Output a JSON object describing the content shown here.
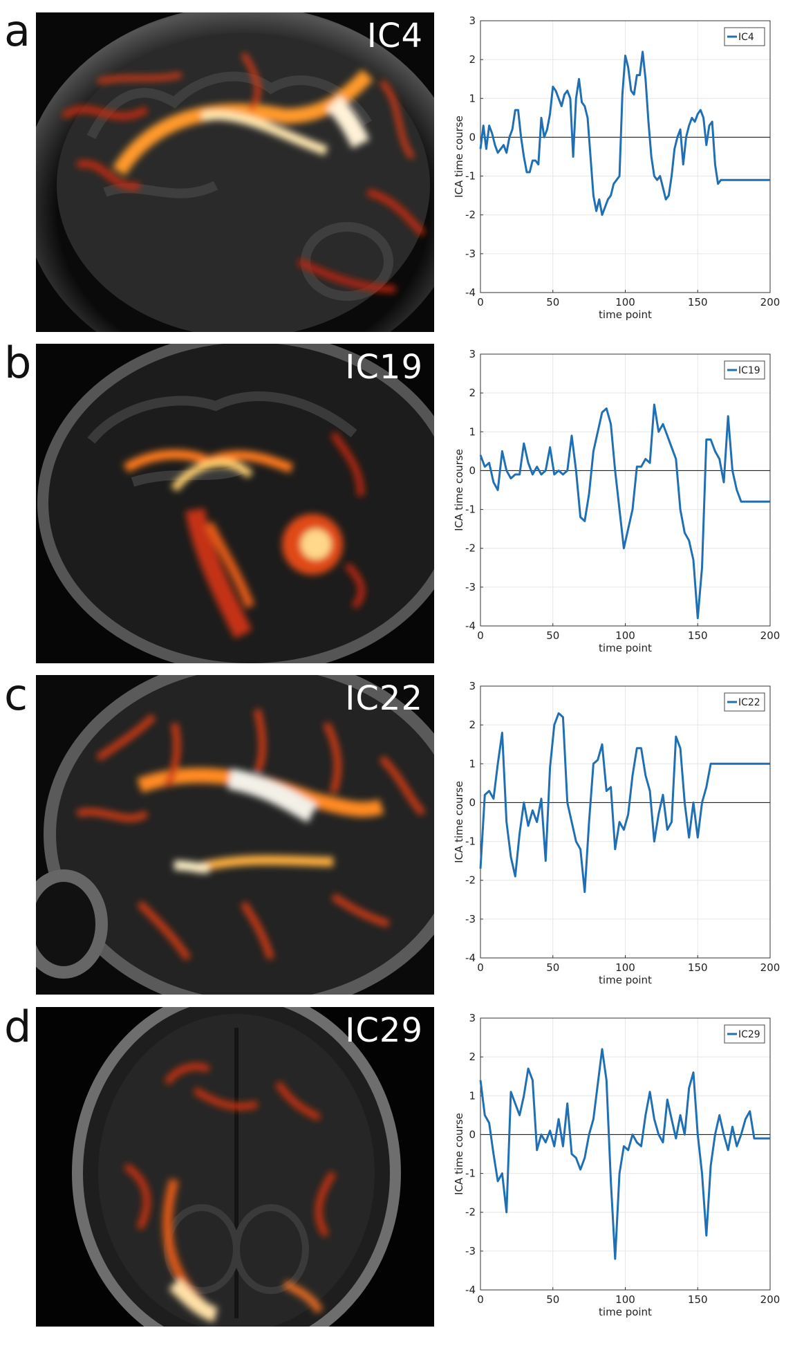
{
  "panels": [
    {
      "letter": "a",
      "label": "IC4",
      "view": "sagittal"
    },
    {
      "letter": "b",
      "label": "IC19",
      "view": "sagittal"
    },
    {
      "letter": "c",
      "label": "IC22",
      "view": "sagittal"
    },
    {
      "letter": "d",
      "label": "IC29",
      "view": "axial"
    }
  ],
  "colors": {
    "series": "#1f6fb4",
    "zero_line": "#222222",
    "grid": "#e6e6e6",
    "axis": "#333333"
  },
  "chart_data": [
    {
      "type": "line",
      "xlabel": "time point",
      "ylabel": "ICA time course",
      "xlim": [
        0,
        200
      ],
      "ylim": [
        -4,
        3
      ],
      "xticks": [
        0,
        50,
        100,
        150,
        200
      ],
      "yticks": [
        -4,
        -3,
        -2,
        -1,
        0,
        1,
        2,
        3
      ],
      "grid": true,
      "legend": "top-right",
      "series": [
        {
          "name": "IC4",
          "x": [
            0,
            2,
            4,
            6,
            8,
            10,
            12,
            14,
            16,
            18,
            20,
            22,
            24,
            26,
            28,
            30,
            32,
            34,
            36,
            38,
            40,
            42,
            44,
            46,
            48,
            50,
            52,
            54,
            56,
            58,
            60,
            62,
            64,
            66,
            68,
            70,
            72,
            74,
            76,
            78,
            80,
            82,
            84,
            86,
            88,
            90,
            92,
            94,
            96,
            98,
            100,
            102,
            104,
            106,
            108,
            110,
            112,
            114,
            116,
            118,
            120,
            122,
            124,
            126,
            128,
            130,
            132,
            134,
            136,
            138,
            140,
            142,
            144,
            146,
            148,
            150,
            152,
            154,
            156,
            158,
            160,
            162,
            164,
            166,
            168,
            170,
            172,
            174,
            176,
            178,
            180,
            182,
            184,
            186,
            188,
            190,
            192,
            194,
            196,
            198,
            200
          ],
          "values": [
            -0.3,
            0.3,
            -0.3,
            0.3,
            0.1,
            -0.2,
            -0.4,
            -0.3,
            -0.2,
            -0.4,
            0.0,
            0.2,
            0.7,
            0.7,
            0.0,
            -0.5,
            -0.9,
            -0.9,
            -0.6,
            -0.6,
            -0.7,
            0.5,
            0.0,
            0.2,
            0.6,
            1.3,
            1.2,
            1.0,
            0.8,
            1.1,
            1.2,
            1.0,
            -0.5,
            1.0,
            1.5,
            0.9,
            0.8,
            0.5,
            -0.5,
            -1.5,
            -1.9,
            -1.6,
            -2.0,
            -1.8,
            -1.6,
            -1.5,
            -1.2,
            -1.1,
            -1.0,
            1.1,
            2.1,
            1.8,
            1.2,
            1.1,
            1.6,
            1.6,
            2.2,
            1.5,
            0.4,
            -0.5,
            -1.0,
            -1.1,
            -1.0,
            -1.3,
            -1.6,
            -1.5,
            -1.0,
            -0.3,
            0.0,
            0.2,
            -0.7,
            0.0,
            0.3,
            0.5,
            0.4,
            0.6,
            0.7,
            0.5,
            -0.2,
            0.3,
            0.4,
            -0.7,
            -1.2,
            -1.1,
            -1.1,
            -1.1,
            -1.1,
            -1.1,
            -1.1,
            -1.1,
            -1.1,
            -1.1,
            -1.1,
            -1.1,
            -1.1,
            -1.1,
            -1.1,
            -1.1,
            -1.1,
            -1.1,
            -1.1
          ]
        }
      ]
    },
    {
      "type": "line",
      "xlabel": "time point",
      "ylabel": "ICA time course",
      "xlim": [
        0,
        200
      ],
      "ylim": [
        -4,
        3
      ],
      "xticks": [
        0,
        50,
        100,
        150,
        200
      ],
      "yticks": [
        -4,
        -3,
        -2,
        -1,
        0,
        1,
        2,
        3
      ],
      "grid": true,
      "legend": "top-right",
      "series": [
        {
          "name": "IC19",
          "x": [
            0,
            3,
            6,
            9,
            12,
            15,
            18,
            21,
            24,
            27,
            30,
            33,
            36,
            39,
            42,
            45,
            48,
            51,
            54,
            57,
            60,
            63,
            66,
            69,
            72,
            75,
            78,
            81,
            84,
            87,
            90,
            93,
            96,
            99,
            102,
            105,
            108,
            111,
            114,
            117,
            120,
            123,
            126,
            129,
            132,
            135,
            138,
            141,
            144,
            147,
            150,
            153,
            156,
            159,
            162,
            165,
            168,
            171,
            174,
            177,
            180,
            183,
            186,
            189,
            192,
            195,
            198,
            200
          ],
          "values": [
            0.4,
            0.1,
            0.2,
            -0.3,
            -0.5,
            0.5,
            0.0,
            -0.2,
            -0.1,
            -0.1,
            0.7,
            0.2,
            -0.1,
            0.1,
            -0.1,
            0.0,
            0.6,
            -0.1,
            0.0,
            -0.1,
            0.0,
            0.9,
            0.0,
            -1.2,
            -1.3,
            -0.6,
            0.5,
            1.0,
            1.5,
            1.6,
            1.2,
            0.0,
            -1.0,
            -2.0,
            -1.5,
            -1.0,
            0.1,
            0.1,
            0.3,
            0.2,
            1.7,
            1.0,
            1.2,
            0.9,
            0.6,
            0.3,
            -1.0,
            -1.6,
            -1.8,
            -2.3,
            -3.8,
            -2.5,
            0.8,
            0.8,
            0.5,
            0.3,
            -0.3,
            1.4,
            0.0,
            -0.5,
            -0.8,
            -0.8,
            -0.8,
            -0.8,
            -0.8,
            -0.8,
            -0.8,
            -0.8
          ]
        }
      ]
    },
    {
      "type": "line",
      "xlabel": "time point",
      "ylabel": "ICA time course",
      "xlim": [
        0,
        200
      ],
      "ylim": [
        -4,
        3
      ],
      "xticks": [
        0,
        50,
        100,
        150,
        200
      ],
      "yticks": [
        -4,
        -3,
        -2,
        -1,
        0,
        1,
        2,
        3
      ],
      "grid": true,
      "legend": "top-right",
      "series": [
        {
          "name": "IC22",
          "x": [
            0,
            3,
            6,
            9,
            12,
            15,
            18,
            21,
            24,
            27,
            30,
            33,
            36,
            39,
            42,
            45,
            48,
            51,
            54,
            57,
            60,
            63,
            66,
            69,
            72,
            75,
            78,
            81,
            84,
            87,
            90,
            93,
            96,
            99,
            102,
            105,
            108,
            111,
            114,
            117,
            120,
            123,
            126,
            129,
            132,
            135,
            138,
            141,
            144,
            147,
            150,
            153,
            156,
            159,
            162,
            165,
            168,
            171,
            174,
            177,
            180,
            183,
            186,
            189,
            192,
            195,
            198,
            200
          ],
          "values": [
            -1.7,
            0.2,
            0.3,
            0.1,
            1.0,
            1.8,
            -0.5,
            -1.4,
            -1.9,
            -0.8,
            0.0,
            -0.6,
            -0.2,
            -0.5,
            0.1,
            -1.5,
            0.9,
            2.0,
            2.3,
            2.2,
            0.0,
            -0.5,
            -1.0,
            -1.2,
            -2.3,
            -0.5,
            1.0,
            1.1,
            1.5,
            0.3,
            0.4,
            -1.2,
            -0.5,
            -0.7,
            -0.3,
            0.7,
            1.4,
            1.4,
            0.7,
            0.3,
            -1.0,
            -0.3,
            0.2,
            -0.7,
            -0.5,
            1.7,
            1.4,
            0.0,
            -0.9,
            0.0,
            -0.9,
            0.0,
            0.4,
            1.0,
            1.0,
            1.0,
            1.0,
            1.0,
            1.0,
            1.0,
            1.0,
            1.0,
            1.0,
            1.0,
            1.0,
            1.0,
            1.0,
            1.0
          ]
        }
      ]
    },
    {
      "type": "line",
      "xlabel": "time point",
      "ylabel": "ICA time course",
      "xlim": [
        0,
        200
      ],
      "ylim": [
        -4,
        3
      ],
      "xticks": [
        0,
        50,
        100,
        150,
        200
      ],
      "yticks": [
        -4,
        -3,
        -2,
        -1,
        0,
        1,
        2,
        3
      ],
      "grid": true,
      "legend": "top-right",
      "series": [
        {
          "name": "IC29",
          "x": [
            0,
            3,
            6,
            9,
            12,
            15,
            18,
            21,
            24,
            27,
            30,
            33,
            36,
            39,
            42,
            45,
            48,
            51,
            54,
            57,
            60,
            63,
            66,
            69,
            72,
            75,
            78,
            81,
            84,
            87,
            90,
            93,
            96,
            99,
            102,
            105,
            108,
            111,
            114,
            117,
            120,
            123,
            126,
            129,
            132,
            135,
            138,
            141,
            144,
            147,
            150,
            153,
            156,
            159,
            162,
            165,
            168,
            171,
            174,
            177,
            180,
            183,
            186,
            189,
            192,
            195,
            198,
            200
          ],
          "values": [
            1.4,
            0.5,
            0.3,
            -0.5,
            -1.2,
            -1.0,
            -2.0,
            1.1,
            0.8,
            0.5,
            1.0,
            1.7,
            1.4,
            -0.4,
            0.0,
            -0.2,
            0.1,
            -0.3,
            0.4,
            -0.3,
            0.8,
            -0.5,
            -0.6,
            -0.9,
            -0.6,
            0.0,
            0.4,
            1.3,
            2.2,
            1.4,
            -1.2,
            -3.2,
            -1.0,
            -0.3,
            -0.4,
            0.0,
            -0.2,
            -0.3,
            0.5,
            1.1,
            0.4,
            0.0,
            -0.2,
            0.9,
            0.4,
            -0.1,
            0.5,
            0.0,
            1.2,
            1.6,
            0.0,
            -1.0,
            -2.6,
            -0.8,
            0.0,
            0.5,
            0.0,
            -0.4,
            0.2,
            -0.3,
            0.0,
            0.4,
            0.6,
            -0.1,
            -0.1,
            -0.1,
            -0.1,
            -0.1
          ]
        }
      ]
    }
  ]
}
